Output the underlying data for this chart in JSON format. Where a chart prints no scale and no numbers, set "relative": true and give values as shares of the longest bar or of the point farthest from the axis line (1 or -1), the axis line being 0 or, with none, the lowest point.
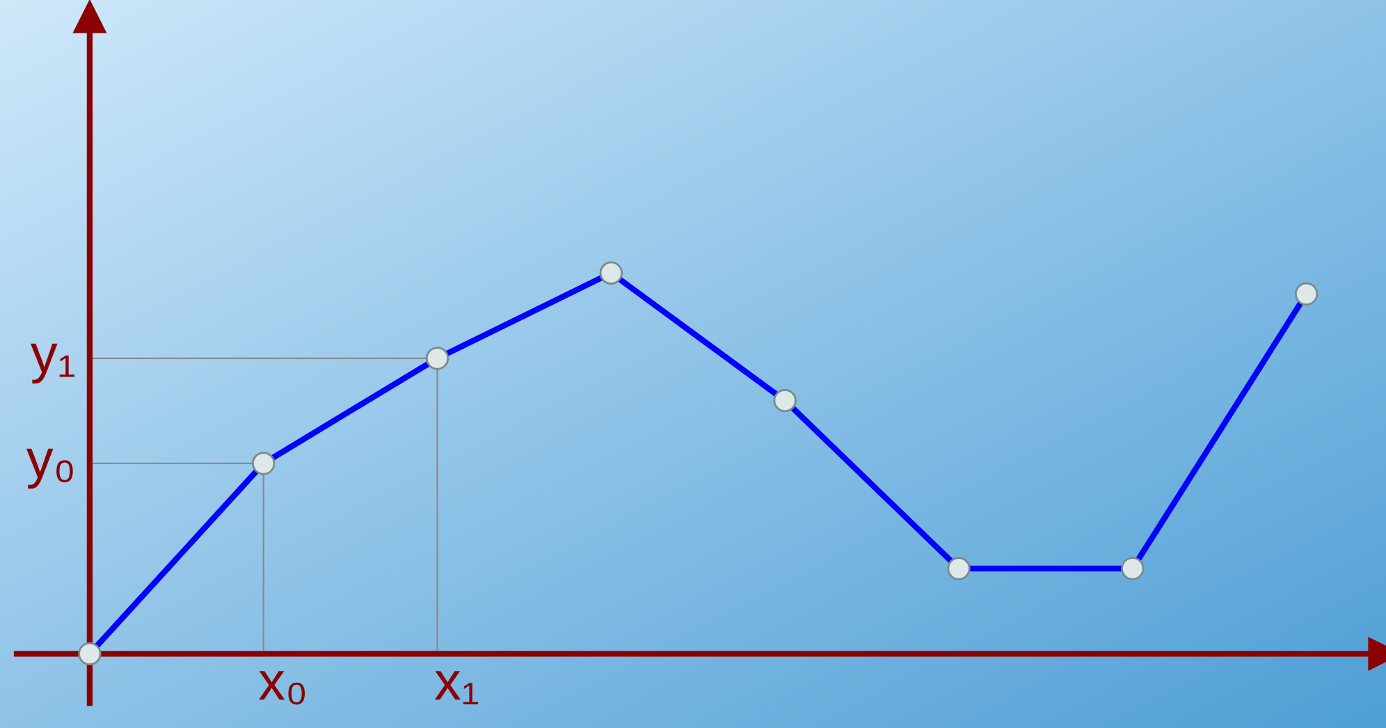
{
  "chart_data": {
    "type": "line",
    "relative": true,
    "color": "#0000ff",
    "marker": "circle",
    "line_style": "solid",
    "grid": false,
    "legend": false,
    "categories": [
      null,
      "x₀",
      "x₁",
      null,
      null,
      null,
      null,
      null
    ],
    "values": [
      0,
      0.5,
      0.776,
      1,
      0.665,
      0.224,
      0.224,
      0.945
    ],
    "annotations": [
      "y₀",
      "y₁"
    ]
  }
}
